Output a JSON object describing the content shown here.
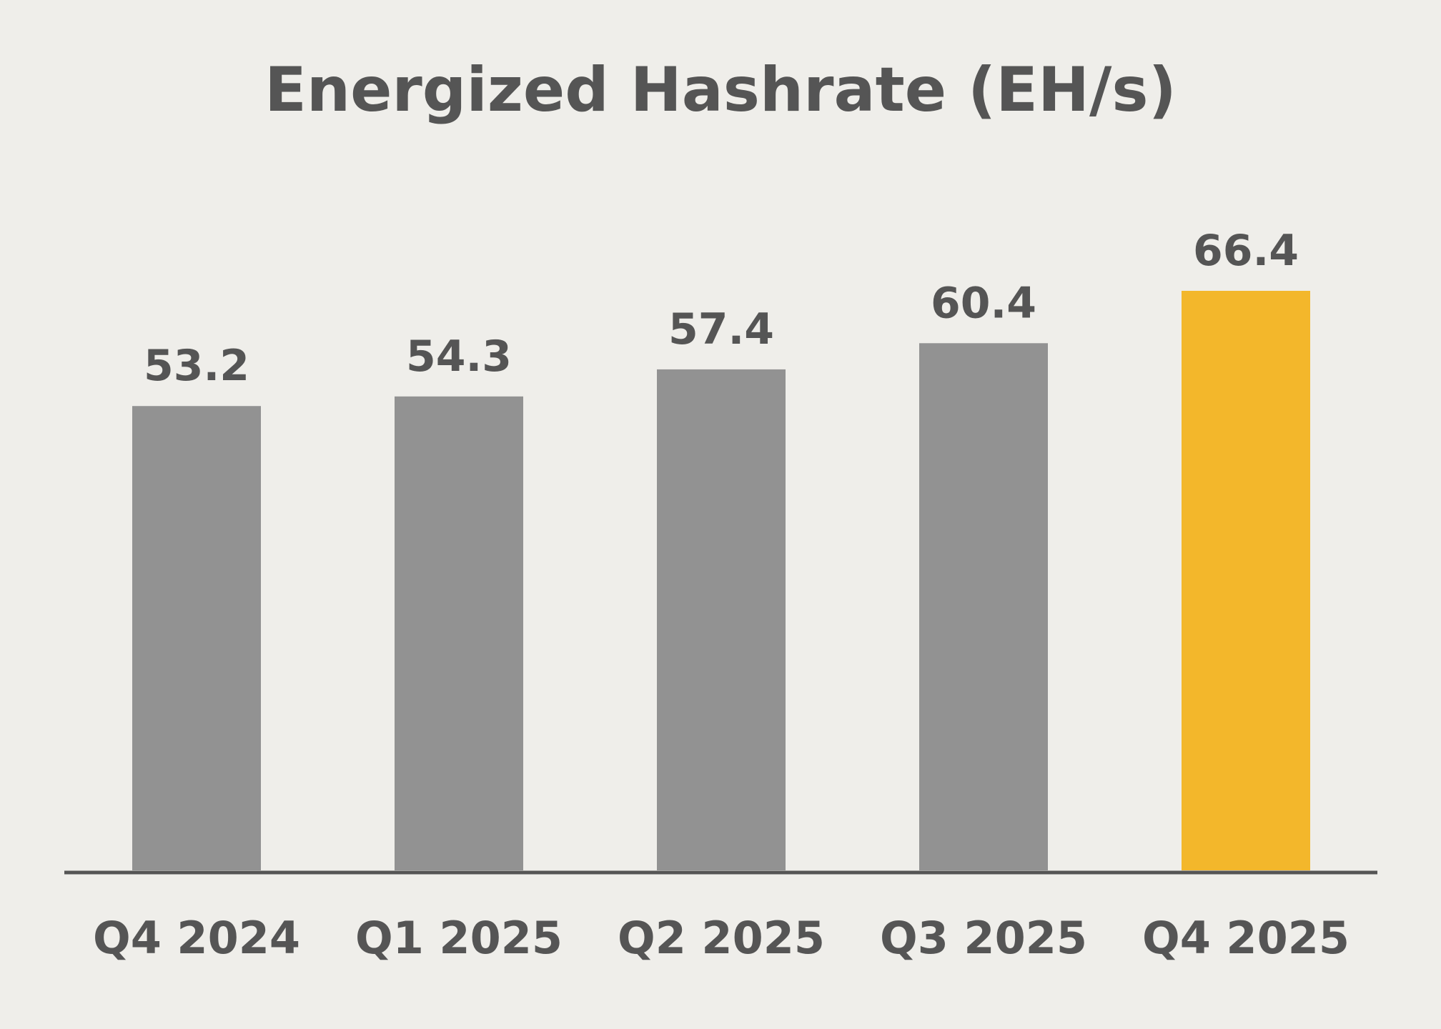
{
  "chart_data": {
    "type": "bar",
    "title": "Energized Hashrate (EH/s)",
    "xlabel": "",
    "ylabel": "",
    "categories": [
      "Q4 2024",
      "Q1 2025",
      "Q2 2025",
      "Q3 2025",
      "Q4 2025"
    ],
    "values": [
      53.2,
      54.3,
      57.4,
      60.4,
      66.4
    ],
    "value_labels": [
      "53.2",
      "54.3",
      "57.4",
      "60.4",
      "66.4"
    ],
    "ylim": [
      0,
      66.4
    ],
    "grid": false,
    "legend": "none",
    "colors": {
      "bar": "#929292",
      "highlight": "#f3b72b",
      "text": "#555555",
      "axis": "#555555",
      "background": "#efeeea"
    },
    "highlight_index": 4
  }
}
